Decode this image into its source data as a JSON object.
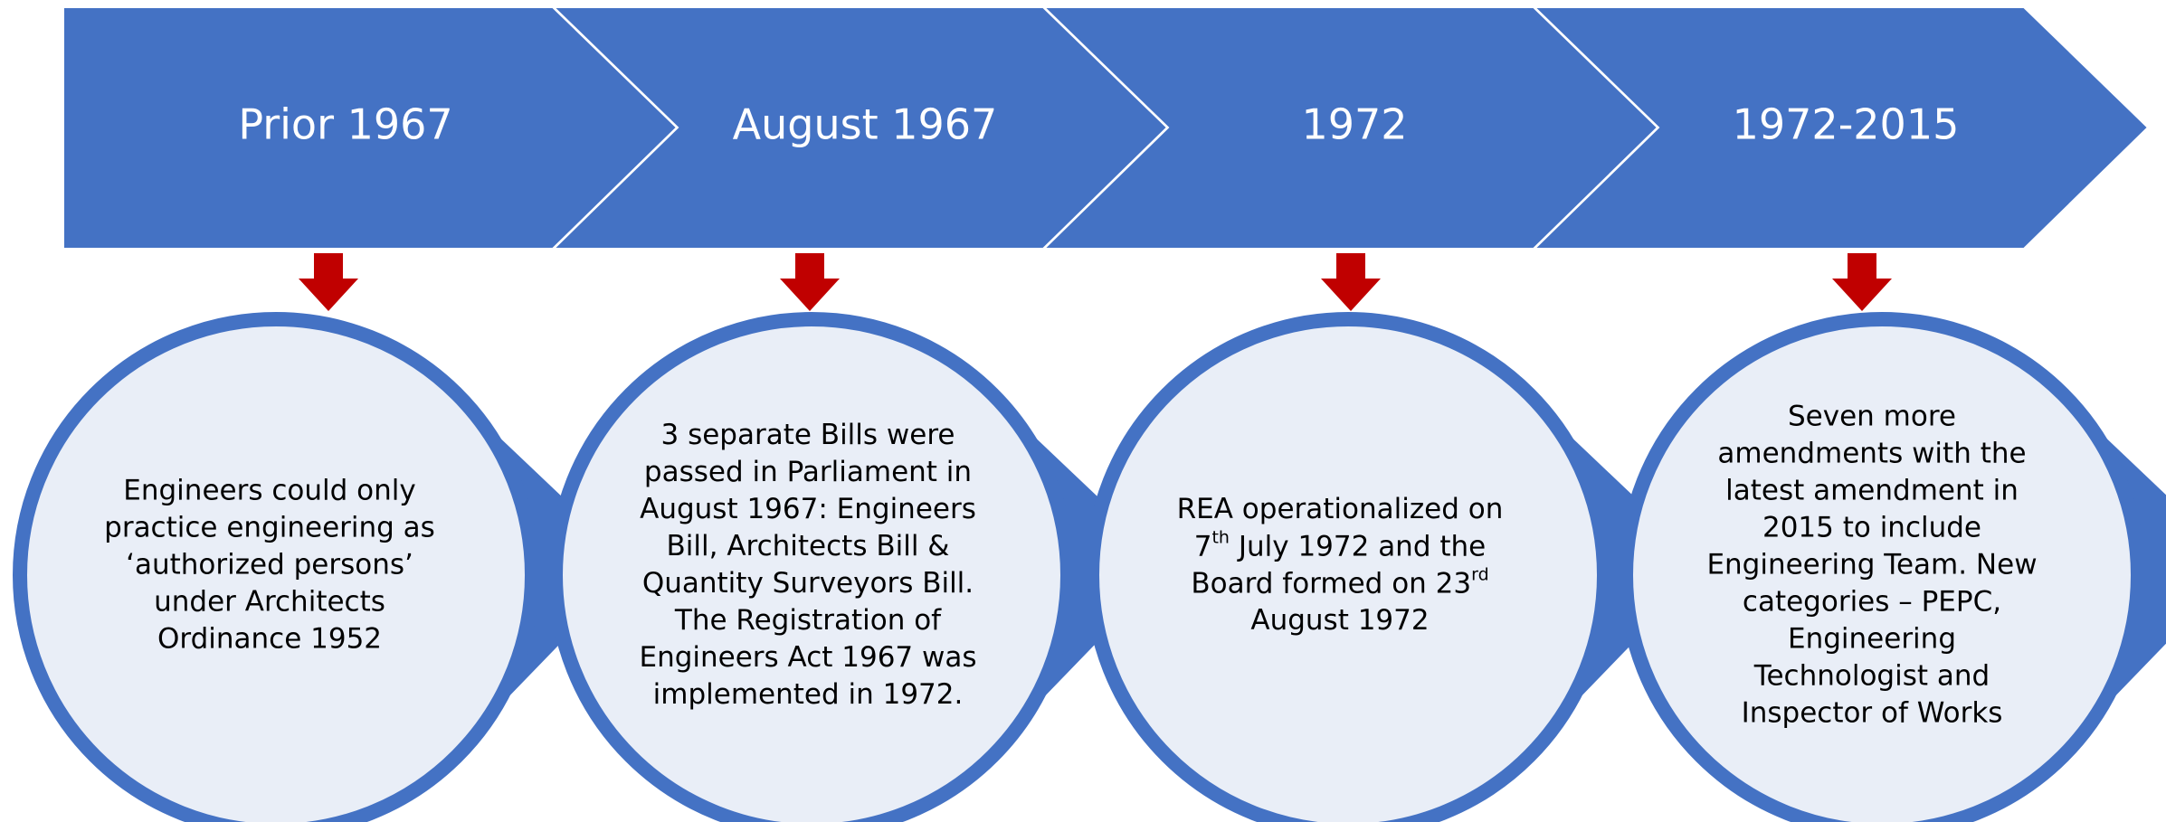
{
  "steps": [
    {
      "label": "Prior 1967",
      "lines": [
        "Engineers could only",
        "practice engineering as",
        "‘authorized persons’",
        "under Architects",
        "Ordinance 1952"
      ]
    },
    {
      "label": "August 1967",
      "lines": [
        "3 separate Bills were",
        "passed in Parliament in",
        "August 1967: Engineers",
        "Bill, Architects Bill &",
        "Quantity Surveyors Bill.",
        "The Registration of",
        "Engineers Act 1967 was",
        "implemented in 1972."
      ]
    },
    {
      "label": "1972",
      "lines": [
        "REA operationalized on",
        [
          "7",
          "th",
          " July 1972 and the"
        ],
        [
          "Board formed on 23",
          "rd"
        ],
        "August 1972"
      ]
    },
    {
      "label": "1972-2015",
      "lines": [
        "Seven more",
        "amendments with the",
        "latest amendment in",
        "2015 to include",
        "Engineering Team. New",
        "categories – PEPC,",
        "Engineering",
        "Technologist and",
        "Inspector of Works"
      ]
    }
  ]
}
